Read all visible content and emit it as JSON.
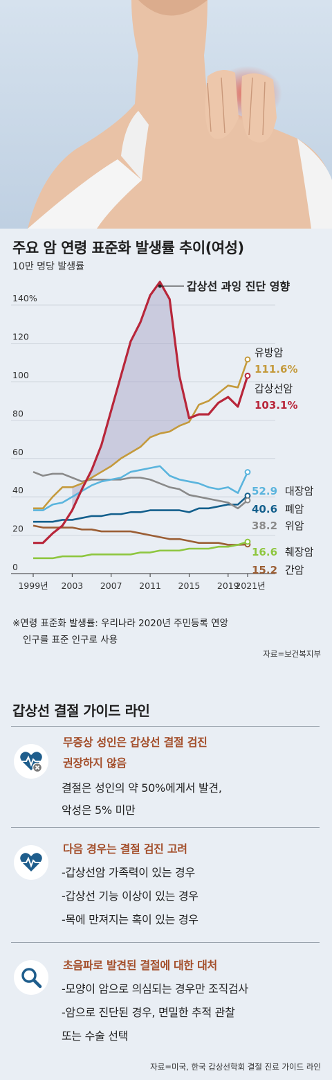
{
  "header": {
    "title": "주요 암 연령 표준화 발생률 추이(여성)",
    "subtitle": "10만 명당 발생률"
  },
  "chart_data": {
    "type": "line",
    "title": "주요 암 연령 표준화 발생률 추이(여성)",
    "ylabel": "10만 명당 발생률",
    "ylim": [
      0,
      150
    ],
    "yticks": [
      "0",
      "20",
      "40",
      "60",
      "80",
      "100",
      "120",
      "140%"
    ],
    "x_tick_labels": [
      "1999년",
      "2003",
      "2007",
      "2011",
      "2015",
      "2019",
      "2021년"
    ],
    "xlim": [
      1999,
      2021
    ],
    "annotation": "갑상선 과잉 진단 영향",
    "grid": true,
    "x": [
      1999,
      2000,
      2001,
      2002,
      2003,
      2004,
      2005,
      2006,
      2007,
      2008,
      2009,
      2010,
      2011,
      2012,
      2013,
      2014,
      2015,
      2016,
      2017,
      2018,
      2019,
      2020,
      2021
    ],
    "series": [
      {
        "name": "유방암",
        "end_label": "111.6%",
        "color": "#c49a3c",
        "values": [
          34,
          34,
          40,
          45,
          45,
          47,
          50,
          53,
          56,
          60,
          63,
          66,
          71,
          73,
          74,
          77,
          79,
          88,
          90,
          94,
          98,
          97,
          111.6
        ]
      },
      {
        "name": "갑상선암",
        "end_label": "103.1%",
        "color": "#b8263a",
        "values": [
          16,
          16,
          21,
          25,
          33,
          44,
          54,
          67,
          85,
          103,
          121,
          131,
          145,
          152,
          143,
          103,
          81,
          83,
          83,
          89,
          92,
          87,
          103.1
        ]
      },
      {
        "name": "대장암",
        "end_label": "52.9",
        "color": "#5ab4dd",
        "values": [
          33,
          33,
          36,
          37,
          40,
          43,
          46,
          48,
          49,
          50,
          53,
          54,
          55,
          56,
          51,
          49,
          48,
          47,
          45,
          44,
          45,
          42,
          52.9
        ]
      },
      {
        "name": "폐암",
        "end_label": "40.6",
        "color": "#135f8c",
        "values": [
          27,
          27,
          27,
          28,
          28,
          29,
          30,
          30,
          31,
          31,
          32,
          32,
          33,
          33,
          33,
          33,
          32,
          34,
          34,
          35,
          36,
          36,
          40.6
        ]
      },
      {
        "name": "위암",
        "end_label": "38.2",
        "color": "#8a8a8a",
        "values": [
          53,
          51,
          52,
          52,
          50,
          48,
          49,
          49,
          49,
          49,
          50,
          50,
          49,
          47,
          45,
          44,
          41,
          40,
          39,
          38,
          37,
          34,
          38.2
        ]
      },
      {
        "name": "췌장암",
        "end_label": "16.6",
        "color": "#8ec63f",
        "values": [
          8,
          8,
          8,
          9,
          9,
          9,
          10,
          10,
          10,
          10,
          10,
          11,
          11,
          12,
          12,
          12,
          13,
          13,
          13,
          14,
          14,
          15,
          16.6
        ]
      },
      {
        "name": "간암",
        "end_label": "15.2",
        "color": "#9b5e34",
        "values": [
          25,
          24,
          24,
          24,
          24,
          23,
          23,
          22,
          22,
          22,
          22,
          21,
          20,
          19,
          18,
          18,
          17,
          16,
          16,
          16,
          15,
          15,
          15.2
        ]
      }
    ]
  },
  "notes": {
    "note_line1": "※연령 표준화 발생률: 우리나라 2020년 주민등록 연앙",
    "note_line2": "인구를 표준 인구로 사용",
    "source_1": "자료=보건복지부"
  },
  "guide": {
    "title": "갑상선 결절 가이드 라인",
    "items": [
      {
        "icon": "heart-x-icon",
        "heading": [
          "무증상 성인은 갑상선 결절 검진",
          "권장하지 않음"
        ],
        "lines": [
          "결절은 성인의 약 50%에게서 발견,",
          "악성은 5% 미만"
        ]
      },
      {
        "icon": "heart-pulse-icon",
        "heading": [
          "다음 경우는 결절 검진 고려"
        ],
        "lines": [
          "-갑상선암 가족력이 있는 경우",
          "-갑상선 기능 이상이 있는 경우",
          "-목에 만져지는 혹이 있는 경우"
        ]
      },
      {
        "icon": "magnifier-icon",
        "heading": [
          "초음파로 발견된 결절에 대한 대처"
        ],
        "lines": [
          "-모양이 암으로 의심되는 경우만 조직검사",
          "-암으로 진단된 경우, 면밀한 추적 관찰",
          " 또는 수술 선택"
        ]
      }
    ],
    "source_2": "자료=미국, 한국 갑상선학회 결절 진료 가이드 라인"
  },
  "colors": {
    "background": "#e9eef4",
    "heading_accent": "#a34e2a",
    "icon_color": "#1e5d8c"
  }
}
